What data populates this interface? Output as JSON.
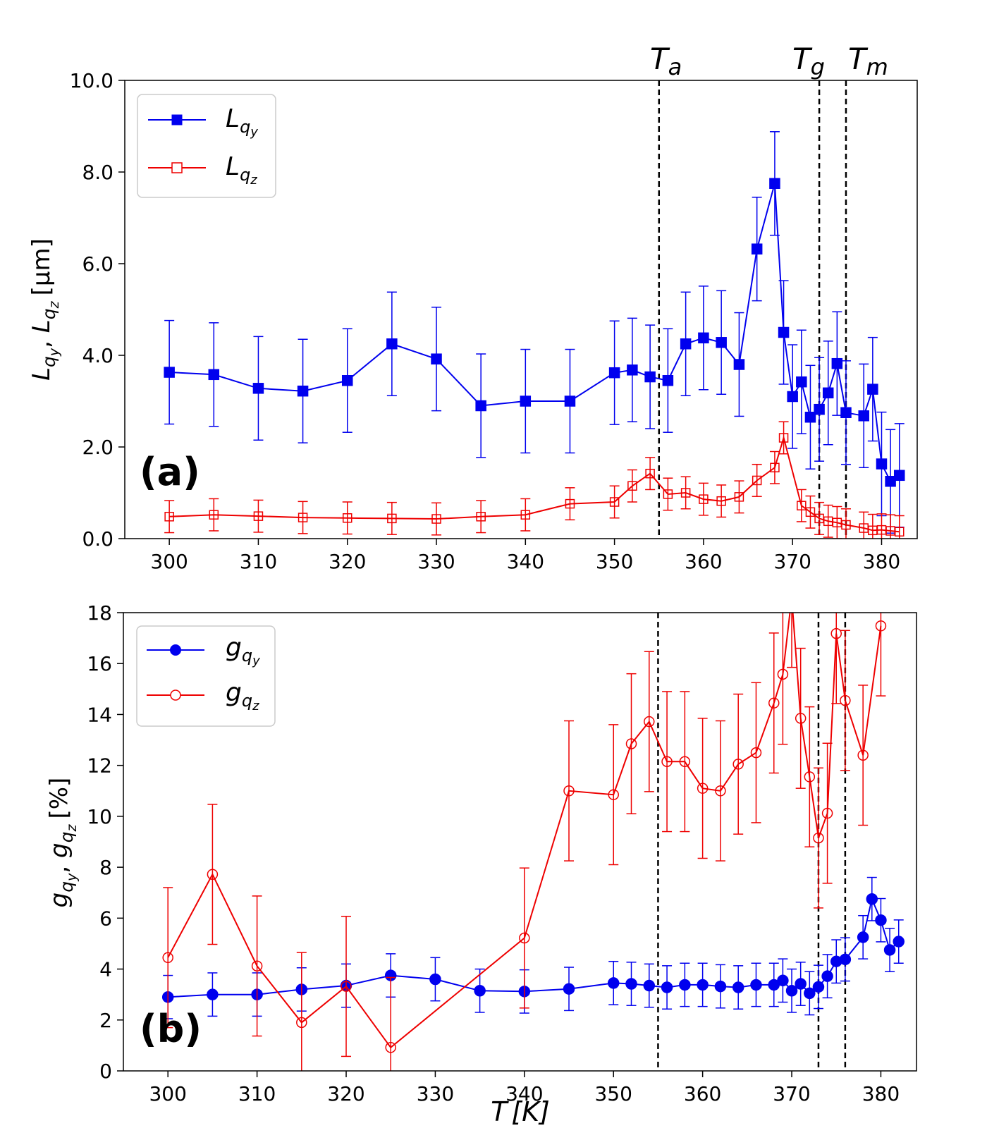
{
  "figure": {
    "threshold_labels": [
      {
        "base": "T",
        "sub": "a"
      },
      {
        "base": "T",
        "sub": "g"
      },
      {
        "base": "T",
        "sub": "m"
      }
    ],
    "xlabel_base": "T",
    "xlabel_unit": "[K]"
  },
  "chart_data": [
    {
      "type": "line",
      "panel_label": "(a)",
      "ylabel": "L_qy, L_qz [μm]",
      "ylabel_parts": {
        "sym": "L",
        "sep": ", ",
        "unit": "[μm]"
      },
      "xlim": [
        295,
        384
      ],
      "ylim": [
        0,
        10
      ],
      "xticks": [
        300,
        310,
        320,
        330,
        340,
        350,
        360,
        370,
        380
      ],
      "yticks": [
        0,
        2,
        4,
        6,
        8,
        10
      ],
      "ytick_labels": [
        "0.0",
        "2.0",
        "4.0",
        "6.0",
        "8.0",
        "10.0"
      ],
      "vlines": [
        355,
        373,
        376
      ],
      "legend": {
        "position": "top-left",
        "entries": [
          {
            "sym": "L",
            "sub": "q",
            "subsub": "y"
          },
          {
            "sym": "L",
            "sub": "q",
            "subsub": "z"
          }
        ]
      },
      "series": [
        {
          "name": "L_qy",
          "color": "#0000ee",
          "marker": "square",
          "filled": true,
          "x": [
            300,
            305,
            310,
            315,
            320,
            325,
            330,
            335,
            340,
            345,
            350,
            352,
            354,
            356,
            358,
            360,
            362,
            364,
            366,
            368,
            369,
            370,
            371,
            372,
            373,
            374,
            375,
            376,
            378,
            379,
            380,
            381,
            382
          ],
          "y": [
            3.63,
            3.58,
            3.28,
            3.22,
            3.45,
            4.25,
            3.92,
            2.9,
            3.0,
            3.0,
            3.62,
            3.68,
            3.53,
            3.45,
            4.25,
            4.38,
            4.28,
            3.8,
            6.32,
            7.75,
            4.5,
            3.1,
            3.42,
            2.65,
            2.82,
            3.18,
            3.82,
            2.75,
            2.68,
            3.26,
            1.63,
            1.25,
            1.38
          ],
          "err": [
            1.13,
            1.13,
            1.13,
            1.13,
            1.13,
            1.13,
            1.13,
            1.13,
            1.13,
            1.13,
            1.13,
            1.13,
            1.13,
            1.13,
            1.13,
            1.13,
            1.13,
            1.13,
            1.13,
            1.13,
            1.13,
            1.13,
            1.13,
            1.13,
            1.13,
            1.13,
            1.13,
            1.13,
            1.13,
            1.13,
            1.13,
            1.13,
            1.13
          ]
        },
        {
          "name": "L_qz",
          "color": "#ee0000",
          "marker": "square",
          "filled": false,
          "x": [
            300,
            305,
            310,
            315,
            320,
            325,
            330,
            335,
            340,
            345,
            350,
            352,
            354,
            356,
            358,
            360,
            362,
            364,
            366,
            368,
            369,
            371,
            372,
            373,
            374,
            375,
            376,
            378,
            379,
            380,
            381,
            382
          ],
          "y": [
            0.48,
            0.52,
            0.49,
            0.46,
            0.45,
            0.44,
            0.43,
            0.48,
            0.52,
            0.76,
            0.8,
            1.15,
            1.42,
            0.97,
            1.0,
            0.86,
            0.82,
            0.91,
            1.27,
            1.55,
            2.2,
            0.72,
            0.58,
            0.44,
            0.38,
            0.35,
            0.3,
            0.23,
            0.18,
            0.19,
            0.17,
            0.15
          ],
          "err": [
            0.35,
            0.35,
            0.35,
            0.35,
            0.35,
            0.35,
            0.35,
            0.35,
            0.35,
            0.35,
            0.35,
            0.35,
            0.35,
            0.35,
            0.35,
            0.35,
            0.35,
            0.35,
            0.35,
            0.35,
            0.35,
            0.35,
            0.35,
            0.35,
            0.35,
            0.35,
            0.35,
            0.35,
            0.35,
            0.35,
            0.35,
            0.35
          ]
        }
      ]
    },
    {
      "type": "line",
      "panel_label": "(b)",
      "ylabel": "g_qy, g_qz [%]",
      "ylabel_parts": {
        "sym": "g",
        "sep": ", ",
        "unit": "[%]"
      },
      "xlabel": "T [K]",
      "xlim": [
        295,
        384
      ],
      "ylim": [
        0,
        18
      ],
      "xticks": [
        300,
        310,
        320,
        330,
        340,
        350,
        360,
        370,
        380
      ],
      "yticks": [
        0,
        2,
        4,
        6,
        8,
        10,
        12,
        14,
        16,
        18
      ],
      "ytick_labels": [
        "0",
        "2",
        "4",
        "6",
        "8",
        "10",
        "12",
        "14",
        "16",
        "18"
      ],
      "vlines": [
        355,
        373,
        376
      ],
      "legend": {
        "position": "top-left",
        "entries": [
          {
            "sym": "g",
            "sub": "q",
            "subsub": "y"
          },
          {
            "sym": "g",
            "sub": "q",
            "subsub": "z"
          }
        ]
      },
      "series": [
        {
          "name": "g_qy",
          "color": "#0000ee",
          "marker": "circle",
          "filled": true,
          "x": [
            300,
            305,
            310,
            315,
            320,
            325,
            330,
            335,
            340,
            345,
            350,
            352,
            354,
            356,
            358,
            360,
            362,
            364,
            366,
            368,
            369,
            370,
            371,
            372,
            373,
            374,
            375,
            376,
            378,
            379,
            380,
            381,
            382
          ],
          "y": [
            2.9,
            3.0,
            3.0,
            3.2,
            3.35,
            3.75,
            3.6,
            3.15,
            3.12,
            3.22,
            3.45,
            3.42,
            3.35,
            3.28,
            3.38,
            3.38,
            3.32,
            3.28,
            3.38,
            3.38,
            3.55,
            3.15,
            3.42,
            3.05,
            3.3,
            3.72,
            4.3,
            4.38,
            5.25,
            6.75,
            5.92,
            4.75,
            5.08
          ],
          "err": [
            0.85,
            0.85,
            0.85,
            0.85,
            0.85,
            0.85,
            0.85,
            0.85,
            0.85,
            0.85,
            0.85,
            0.85,
            0.85,
            0.85,
            0.85,
            0.85,
            0.85,
            0.85,
            0.85,
            0.85,
            0.85,
            0.85,
            0.85,
            0.85,
            0.85,
            0.85,
            0.85,
            0.85,
            0.85,
            0.85,
            0.85,
            0.85,
            0.85
          ]
        },
        {
          "name": "g_qz",
          "color": "#ee0000",
          "marker": "circle",
          "filled": false,
          "x": [
            300,
            305,
            310,
            315,
            320,
            325,
            340,
            345,
            350,
            352,
            354,
            356,
            358,
            360,
            362,
            364,
            366,
            368,
            369,
            370,
            371,
            372,
            373,
            374,
            375,
            376,
            378,
            380
          ],
          "y": [
            4.45,
            7.72,
            4.12,
            1.9,
            3.32,
            0.92,
            5.22,
            11.0,
            10.85,
            12.85,
            13.72,
            12.15,
            12.15,
            11.1,
            11.0,
            12.05,
            12.5,
            14.45,
            15.58,
            18.6,
            13.85,
            11.55,
            9.15,
            10.12,
            17.18,
            14.55,
            12.4,
            17.48
          ],
          "err": [
            2.75,
            2.75,
            2.75,
            2.75,
            2.75,
            2.75,
            2.75,
            2.75,
            2.75,
            2.75,
            2.75,
            2.75,
            2.75,
            2.75,
            2.75,
            2.75,
            2.75,
            2.75,
            2.75,
            2.75,
            2.75,
            2.75,
            2.75,
            2.75,
            2.75,
            2.75,
            2.75,
            2.75
          ]
        }
      ]
    }
  ]
}
